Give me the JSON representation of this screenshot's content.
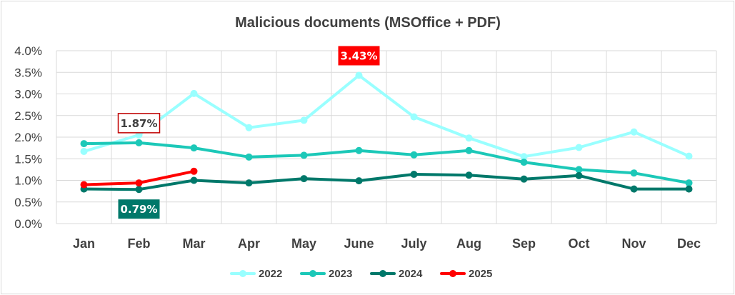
{
  "chart_data": {
    "type": "line",
    "title": "Malicious documents (MSOffice + PDF)",
    "categories": [
      "Jan",
      "Feb",
      "Mar",
      "Apr",
      "May",
      "June",
      "July",
      "Aug",
      "Sep",
      "Oct",
      "Nov",
      "Dec"
    ],
    "y_ticks": [
      "0.0%",
      "0.5%",
      "1.0%",
      "1.5%",
      "2.0%",
      "2.5%",
      "3.0%",
      "3.5%",
      "4.0%"
    ],
    "ylim": [
      0,
      4.0
    ],
    "y_unit": "%",
    "grid": true,
    "legend_position": "bottom",
    "series": [
      {
        "name": "2022",
        "color": "#99ffff",
        "values": [
          1.67,
          2.05,
          3.01,
          2.22,
          2.39,
          3.43,
          2.47,
          1.98,
          1.55,
          1.76,
          2.12,
          1.56
        ]
      },
      {
        "name": "2023",
        "color": "#1cc8b8",
        "values": [
          1.85,
          1.87,
          1.75,
          1.54,
          1.58,
          1.69,
          1.59,
          1.69,
          1.42,
          1.25,
          1.17,
          0.94
        ]
      },
      {
        "name": "2024",
        "color": "#00786a",
        "values": [
          0.8,
          0.79,
          1.0,
          0.94,
          1.04,
          0.99,
          1.14,
          1.12,
          1.03,
          1.11,
          0.8,
          0.8
        ]
      },
      {
        "name": "2025",
        "color": "#ff0000",
        "values": [
          0.9,
          0.94,
          1.21,
          null,
          null,
          null,
          null,
          null,
          null,
          null,
          null,
          null
        ]
      }
    ],
    "annotations": [
      {
        "text": "1.87%",
        "category": "Feb",
        "value": 1.87,
        "position": "above",
        "style": "outline",
        "color": "#c00000",
        "text_color": "#404040"
      },
      {
        "text": "3.43%",
        "category": "June",
        "value": 3.43,
        "position": "above",
        "style": "filled",
        "color": "#ff0000",
        "text_color": "#ffffff"
      },
      {
        "text": "0.79%",
        "category": "Feb",
        "value": 0.79,
        "position": "below",
        "style": "filled",
        "color": "#00786a",
        "text_color": "#ffffff"
      }
    ]
  }
}
